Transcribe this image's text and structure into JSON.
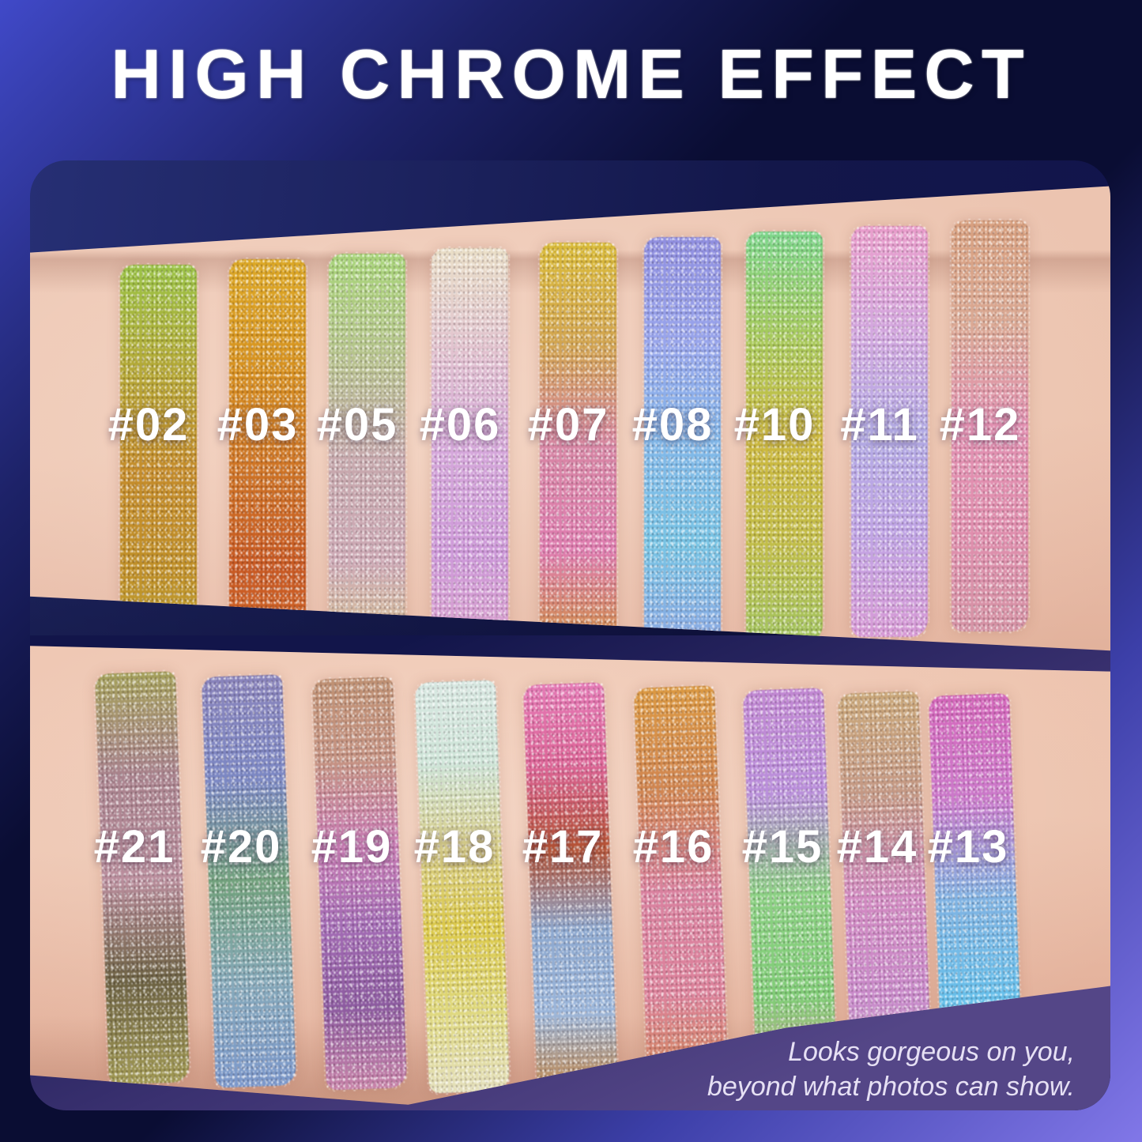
{
  "title": "HIGH CHROME EFFECT",
  "tagline": {
    "line1": "Looks gorgeous on you,",
    "line2": "beyond what photos can show."
  },
  "colors": {
    "bg_top_left": "#4049c8",
    "bg_navy": "#0a0d33",
    "bg_bottom_right": "#8177e8",
    "frame_backdrop_left": "#262f74",
    "frame_backdrop_right": "#11144c",
    "lower_backdrop_purple": "#544687",
    "skin_light": "#eec9b6",
    "skin_shadow": "#d9a68f",
    "title_text": "#ffffff",
    "label_text": "#ffffff",
    "tagline_text": "#e6e0f4"
  },
  "rows": {
    "top": {
      "swatches": [
        {
          "id": "02",
          "label": "#02",
          "colors": [
            "#9cc24e",
            "#b3a93e",
            "#c18c32",
            "#bd9030",
            "#b8a83c"
          ]
        },
        {
          "id": "03",
          "label": "#03",
          "colors": [
            "#d9a930",
            "#d39328",
            "#c9762c",
            "#c25a28",
            "#cb6c31"
          ]
        },
        {
          "id": "05",
          "label": "#05",
          "colors": [
            "#aad47e",
            "#b7c390",
            "#c5a9ad",
            "#ccabb6",
            "#d5c38e"
          ]
        },
        {
          "id": "06",
          "label": "#06",
          "colors": [
            "#e9dfc9",
            "#e0c3cf",
            "#d3a8d8",
            "#cb9ad6",
            "#dba6cb"
          ]
        },
        {
          "id": "07",
          "label": "#07",
          "colors": [
            "#d8bc42",
            "#cfa457",
            "#d387a4",
            "#da7fae",
            "#c98f3e"
          ]
        },
        {
          "id": "08",
          "label": "#08",
          "colors": [
            "#918fdb",
            "#9aa5e7",
            "#85b7e5",
            "#7cc3e1",
            "#8ea7df"
          ]
        },
        {
          "id": "10",
          "label": "#10",
          "colors": [
            "#81d58f",
            "#a7c963",
            "#cbb947",
            "#c2bd50",
            "#a3c366"
          ]
        },
        {
          "id": "11",
          "label": "#11",
          "colors": [
            "#e69fca",
            "#d2a8dc",
            "#b3abe1",
            "#bfa5e1",
            "#d59bd3"
          ]
        },
        {
          "id": "12",
          "label": "#12",
          "colors": [
            "#d5a182",
            "#d8aa96",
            "#de92b1",
            "#dc8fad",
            "#d294a5"
          ]
        }
      ]
    },
    "bottom": {
      "swatches": [
        {
          "id": "21",
          "label": "#21",
          "colors": [
            "#a4a05f",
            "#a7838d",
            "#b88f9d",
            "#6c6245",
            "#a19a58"
          ]
        },
        {
          "id": "20",
          "label": "#20",
          "colors": [
            "#8a84b8",
            "#7d88c0",
            "#74a07e",
            "#87a8b8",
            "#7e98c8"
          ]
        },
        {
          "id": "19",
          "label": "#19",
          "colors": [
            "#bd9276",
            "#c29384",
            "#c77fb2",
            "#a06cb0",
            "#8a5c9c",
            "#c585a8"
          ]
        },
        {
          "id": "18",
          "label": "#18",
          "colors": [
            "#d9e8e2",
            "#cfe4d8",
            "#d7ce8e",
            "#dac952",
            "#ded883",
            "#e4e0c0"
          ]
        },
        {
          "id": "17",
          "label": "#17",
          "colors": [
            "#e07cb4",
            "#d56694",
            "#b05438",
            "#8fa8cc",
            "#9db6d8",
            "#bf8448"
          ]
        },
        {
          "id": "16",
          "label": "#16",
          "colors": [
            "#d89a49",
            "#cc8655",
            "#d5839f",
            "#d8849b",
            "#c9864d"
          ]
        },
        {
          "id": "15",
          "label": "#15",
          "colors": [
            "#bf89cf",
            "#b890d7",
            "#8fcf87",
            "#84cb7b",
            "#cf9f8f"
          ]
        },
        {
          "id": "14",
          "label": "#14",
          "colors": [
            "#c8a87d",
            "#c29987",
            "#ce8bbf",
            "#c58bc7",
            "#d6ced6"
          ]
        },
        {
          "id": "13",
          "label": "#13",
          "colors": [
            "#cf69b7",
            "#c87bc7",
            "#83b3df",
            "#6bbfe7",
            "#9983cb"
          ]
        }
      ]
    }
  }
}
